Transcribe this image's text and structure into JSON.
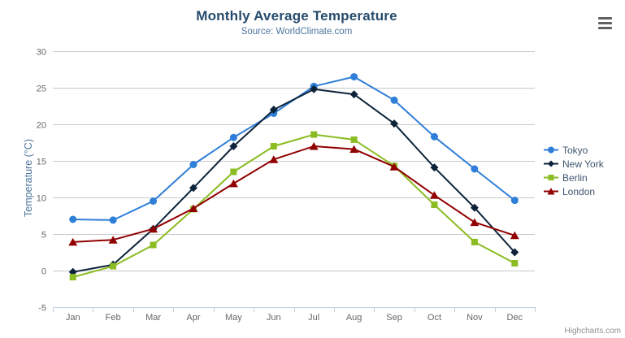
{
  "header": {
    "title": "Monthly Average Temperature",
    "subtitle": "Source: WorldClimate.com"
  },
  "icons": {
    "export_menu": "hamburger-menu-icon"
  },
  "credits": {
    "label": "Highcharts.com"
  },
  "theme": {
    "background": "#ffffff",
    "title_color": "#274b6d",
    "subtitle_color": "#4d759e",
    "axis_title_color": "#4d759e",
    "axis_label_color": "#666666",
    "grid_color": "#c8c8c8",
    "axis_line_color": "#c0d0e0",
    "legend_text_color": "#3E576F",
    "credits_color": "#909090"
  },
  "chart_data": {
    "type": "line",
    "title": "Monthly Average Temperature",
    "subtitle": "Source: WorldClimate.com",
    "xlabel": "",
    "ylabel": "Temperature (°C)",
    "categories": [
      "Jan",
      "Feb",
      "Mar",
      "Apr",
      "May",
      "Jun",
      "Jul",
      "Aug",
      "Sep",
      "Oct",
      "Nov",
      "Dec"
    ],
    "ylim": [
      -5,
      30
    ],
    "yticks": [
      -5,
      0,
      5,
      10,
      15,
      20,
      25,
      30
    ],
    "grid": true,
    "legend_position": "right",
    "series": [
      {
        "name": "Tokyo",
        "color": "#2f7ed8",
        "marker": "circle",
        "values": [
          7.0,
          6.9,
          9.5,
          14.5,
          18.2,
          21.5,
          25.2,
          26.5,
          23.3,
          18.3,
          13.9,
          9.6
        ]
      },
      {
        "name": "New York",
        "color": "#0d233a",
        "marker": "diamond",
        "values": [
          -0.2,
          0.8,
          5.7,
          11.3,
          17.0,
          22.0,
          24.8,
          24.1,
          20.1,
          14.1,
          8.6,
          2.5
        ]
      },
      {
        "name": "Berlin",
        "color": "#8bbc21",
        "marker": "square",
        "values": [
          -0.9,
          0.6,
          3.5,
          8.4,
          13.5,
          17.0,
          18.6,
          17.9,
          14.3,
          9.0,
          3.9,
          1.0
        ]
      },
      {
        "name": "London",
        "color": "#910000",
        "marker": "triangle",
        "values": [
          3.9,
          4.2,
          5.7,
          8.5,
          11.9,
          15.2,
          17.0,
          16.6,
          14.2,
          10.3,
          6.6,
          4.8
        ]
      }
    ]
  }
}
